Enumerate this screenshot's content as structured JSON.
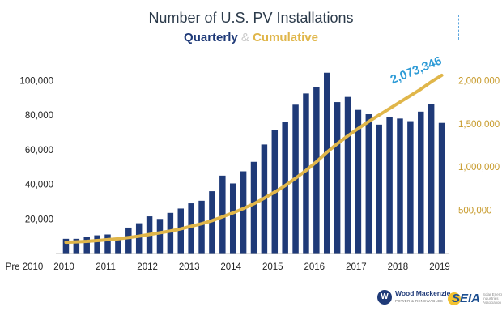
{
  "header": {
    "title": "Number of U.S. PV Installations",
    "subtitle_quarterly": "Quarterly",
    "subtitle_amp": "&",
    "subtitle_cumulative": "Cumulative"
  },
  "logos": {
    "wood_mackenzie": "Wood Mackenzie",
    "wood_mackenzie_sub": "POWER & RENEWABLES",
    "seia": "SEIA",
    "seia_fine": "Solar Energy Industries Association"
  },
  "colors": {
    "bar": "#1f3a78",
    "line": "#e0b64a",
    "annotation": "#2e9bd6",
    "left_axis_text": "#222222",
    "right_axis_text": "#c79a2a"
  },
  "chart_data": {
    "type": "bar",
    "title": "Number of U.S. PV Installations",
    "subtitle": "Quarterly & Cumulative",
    "x_tick_labels": [
      "Pre 2010",
      "2010",
      "2011",
      "2012",
      "2013",
      "2014",
      "2015",
      "2016",
      "2017",
      "2018",
      "2019"
    ],
    "y_left": {
      "ticks": [
        20000,
        40000,
        60000,
        80000,
        100000
      ],
      "tick_labels": [
        "20,000",
        "40,000",
        "60,000",
        "80,000",
        "100,000"
      ],
      "ylim": [
        0,
        110000
      ]
    },
    "y_right": {
      "ticks": [
        500000,
        1000000,
        1500000,
        2000000
      ],
      "tick_labels": [
        "500,000",
        "1,000,000",
        "1,500,000",
        "2,000,000"
      ],
      "ylim": [
        0,
        2200000
      ]
    },
    "grid": false,
    "series": [
      {
        "kind": "bar",
        "axis": "left",
        "values": [
          8500,
          8500,
          9500,
          10500,
          11000,
          8500,
          15000,
          17500,
          21500,
          20000,
          23500,
          26000,
          29000,
          30500,
          36000,
          45000,
          40500,
          47500,
          53000,
          63000,
          71500,
          76000,
          86000,
          92500,
          96000,
          104500,
          87500,
          90500,
          83000,
          80500,
          74500,
          79000,
          78000,
          76500,
          82000,
          86500,
          75500
        ]
      },
      {
        "kind": "line",
        "axis": "right",
        "values": [
          130000,
          135000,
          140000,
          150000,
          160000,
          170000,
          185000,
          200000,
          220000,
          240000,
          260000,
          285000,
          315000,
          345000,
          380000,
          425000,
          470000,
          520000,
          575000,
          640000,
          710000,
          785000,
          870000,
          960000,
          1060000,
          1170000,
          1270000,
          1360000,
          1445000,
          1525000,
          1600000,
          1675000,
          1750000,
          1825000,
          1900000,
          1985000,
          2060000
        ]
      }
    ],
    "annotations": [
      {
        "text": "2,073,346"
      }
    ]
  }
}
